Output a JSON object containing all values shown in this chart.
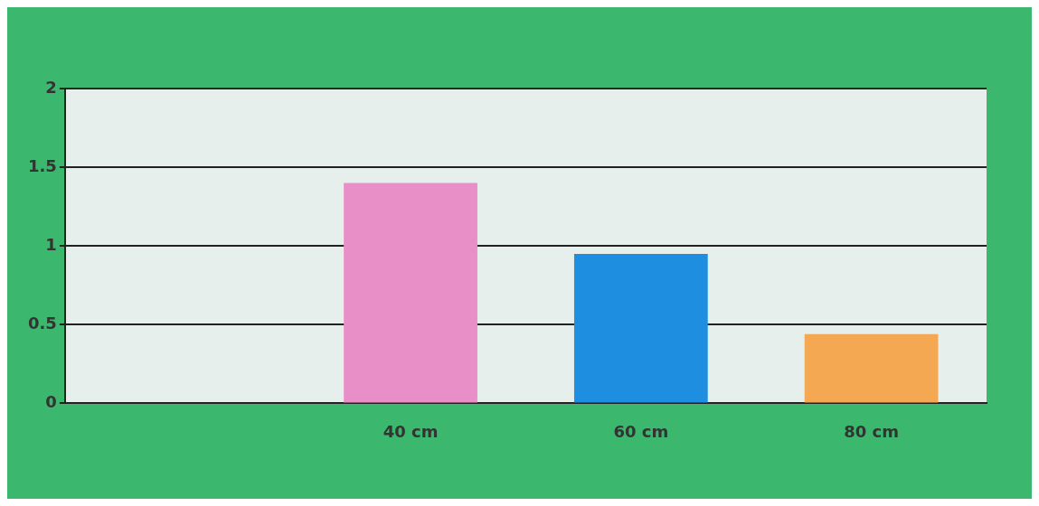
{
  "chart_data": {
    "type": "bar",
    "categories": [
      null,
      "40 cm",
      "60 cm",
      "80 cm"
    ],
    "values": [
      null,
      1.4,
      0.95,
      0.44
    ],
    "colors": [
      "#e88fc8",
      "#e88fc8",
      "#1e8ee0",
      "#f5a852"
    ],
    "ylim": [
      0,
      2
    ],
    "yticks": [
      0,
      0.5,
      1,
      1.5,
      2
    ],
    "grid": "y",
    "legend": false
  }
}
